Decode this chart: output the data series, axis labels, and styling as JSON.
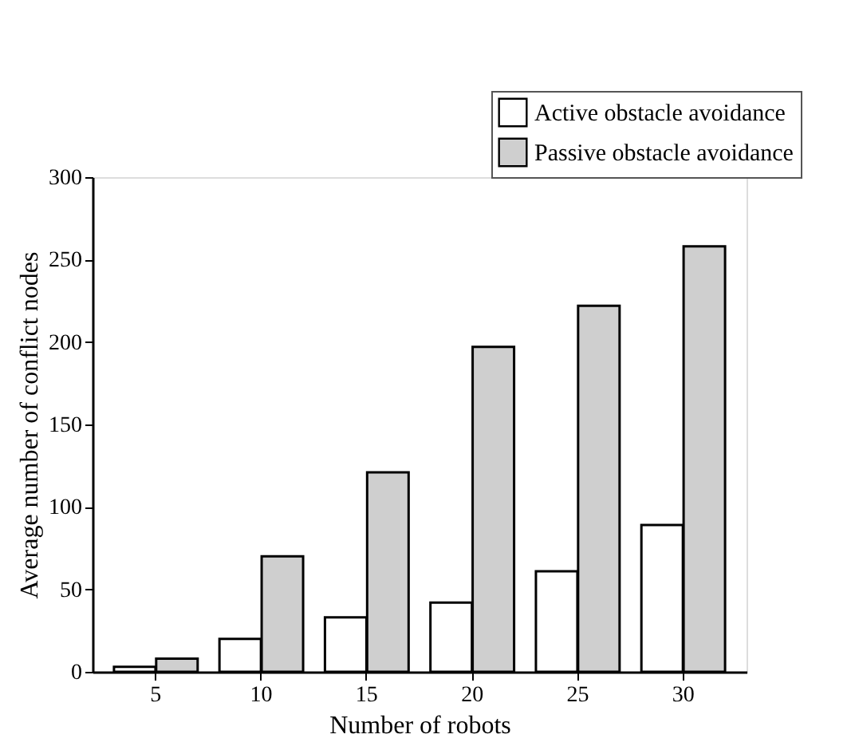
{
  "chart_data": {
    "type": "bar",
    "xlabel": "Number of robots",
    "ylabel": "Average number of conflict nodes",
    "categories": [
      "5",
      "10",
      "15",
      "20",
      "25",
      "30"
    ],
    "series": [
      {
        "name": "Active obstacle avoidance",
        "color": "#ffffff",
        "values": [
          3,
          20,
          33,
          42,
          61,
          89
        ]
      },
      {
        "name": "Passive obstacle avoidance",
        "color": "#cfcfcf",
        "values": [
          8,
          70,
          121,
          197,
          222,
          258
        ]
      }
    ],
    "ylim": [
      0,
      300
    ],
    "yticks": [
      0,
      50,
      100,
      150,
      200,
      250,
      300
    ],
    "grid": false,
    "legend": "top right"
  }
}
